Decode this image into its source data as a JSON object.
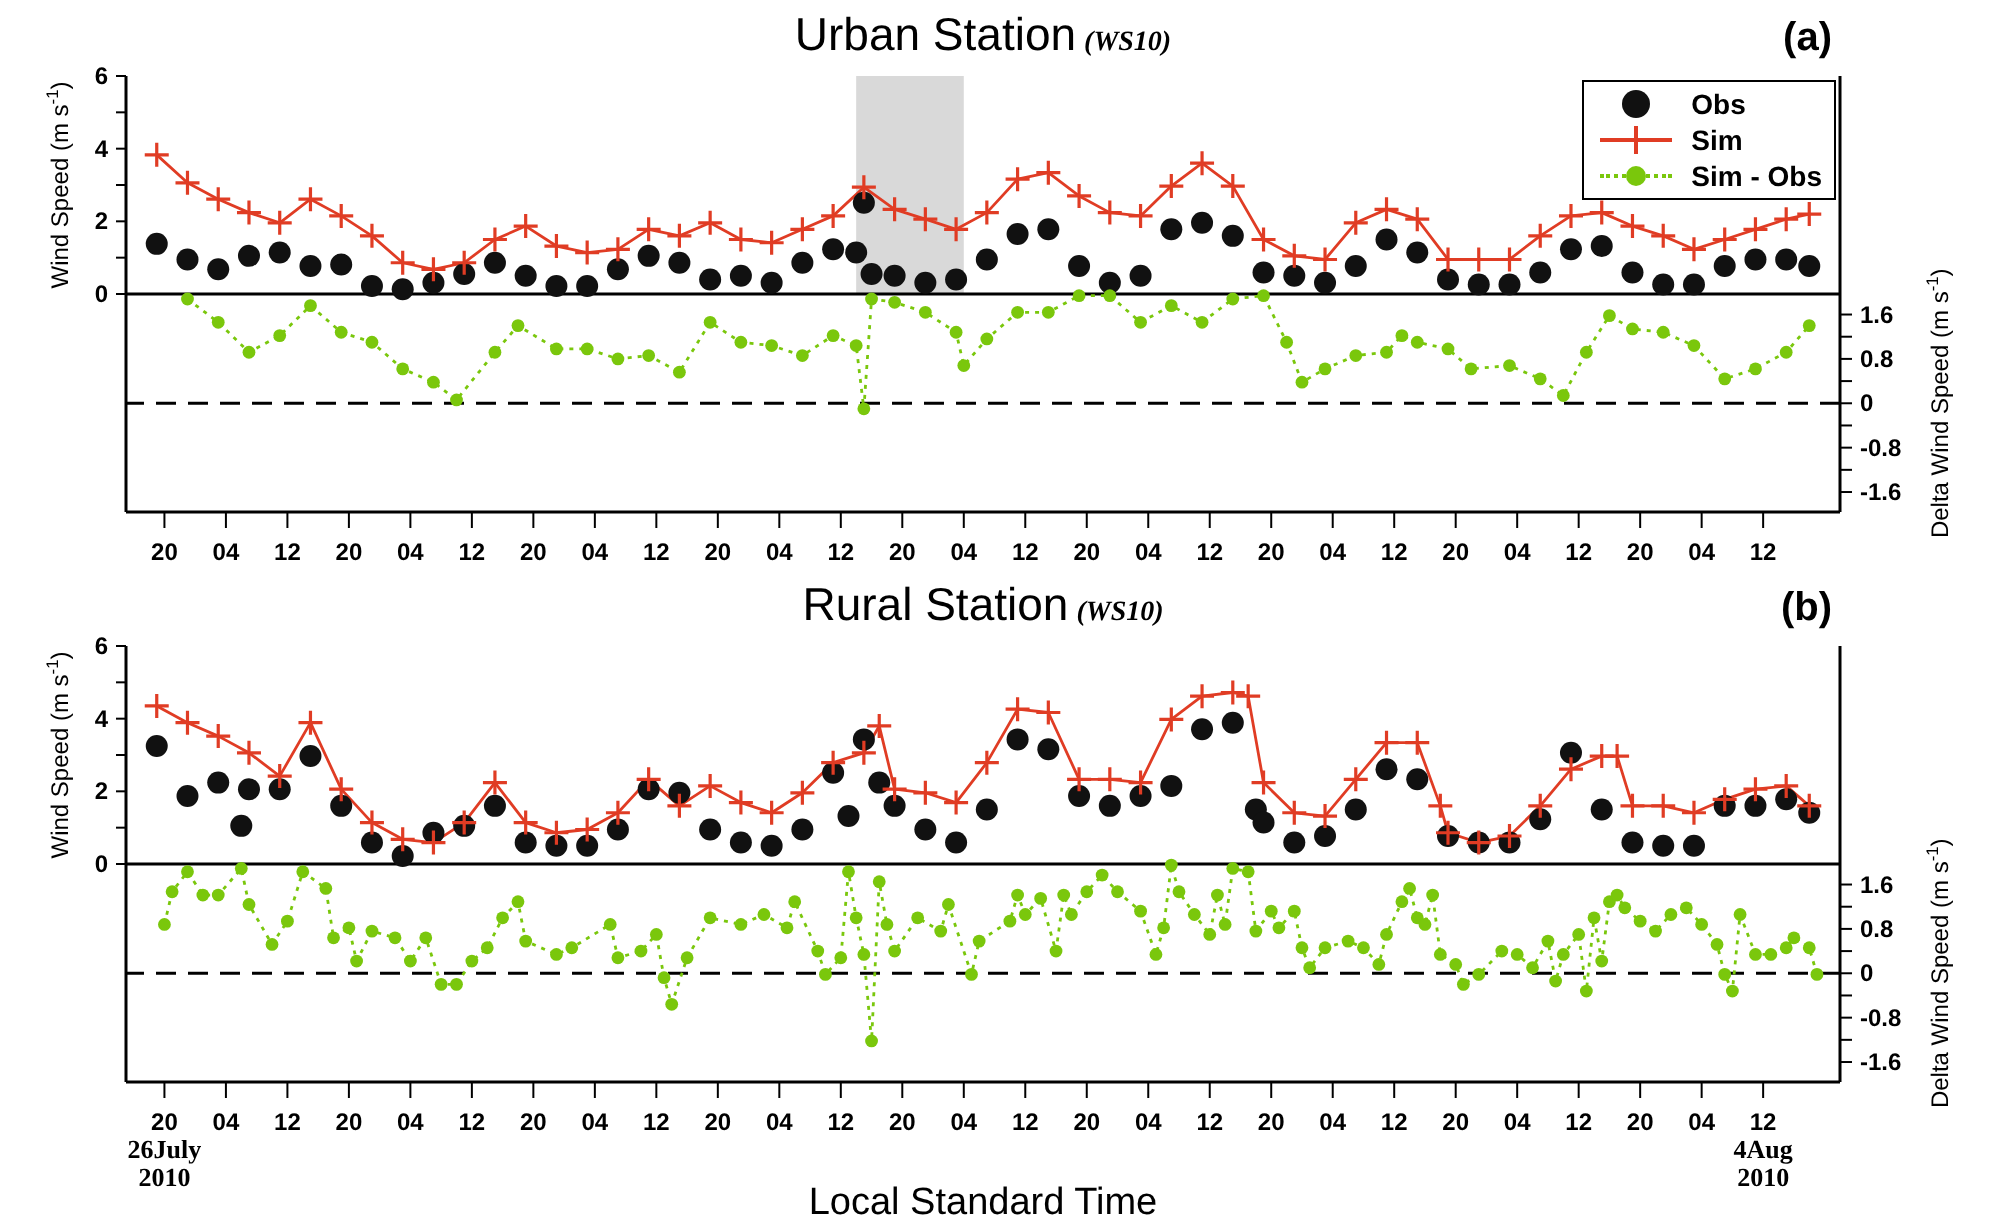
{
  "chart_data": [
    {
      "type": "line",
      "title": "Urban Station",
      "subtitle": "(WS10)",
      "annotations": [
        "(a)"
      ],
      "ylabel": "Wind Speed (m s$^{-1}$)",
      "y2label": "Delta Wind Speed (m s$^{-1}$)",
      "xlim": [
        "2010-07-26T15:00",
        "2010-08-04T22:00"
      ],
      "xticks": [
        {
          "value": "2010-07-26T20:00",
          "label": "20"
        },
        {
          "value": "2010-07-27T04:00",
          "label": "04"
        },
        {
          "value": "2010-07-27T12:00",
          "label": "12"
        },
        {
          "value": "2010-07-27T20:00",
          "label": "20"
        },
        {
          "value": "2010-07-28T04:00",
          "label": "04"
        },
        {
          "value": "2010-07-28T12:00",
          "label": "12"
        },
        {
          "value": "2010-07-28T20:00",
          "label": "20"
        },
        {
          "value": "2010-07-29T04:00",
          "label": "04"
        },
        {
          "value": "2010-07-29T12:00",
          "label": "12"
        },
        {
          "value": "2010-07-29T20:00",
          "label": "20"
        },
        {
          "value": "2010-07-30T04:00",
          "label": "04"
        },
        {
          "value": "2010-07-30T12:00",
          "label": "12"
        },
        {
          "value": "2010-07-30T20:00",
          "label": "20"
        },
        {
          "value": "2010-07-31T04:00",
          "label": "04"
        },
        {
          "value": "2010-07-31T12:00",
          "label": "12"
        },
        {
          "value": "2010-07-31T20:00",
          "label": "20"
        },
        {
          "value": "2010-08-01T04:00",
          "label": "04"
        },
        {
          "value": "2010-08-01T12:00",
          "label": "12"
        },
        {
          "value": "2010-08-01T20:00",
          "label": "20"
        },
        {
          "value": "2010-08-02T04:00",
          "label": "04"
        },
        {
          "value": "2010-08-02T12:00",
          "label": "12"
        },
        {
          "value": "2010-08-02T20:00",
          "label": "20"
        },
        {
          "value": "2010-08-03T04:00",
          "label": "04"
        },
        {
          "value": "2010-08-03T12:00",
          "label": "12"
        },
        {
          "value": "2010-08-03T20:00",
          "label": "20"
        },
        {
          "value": "2010-08-04T04:00",
          "label": "04"
        },
        {
          "value": "2010-08-04T12:00",
          "label": "12"
        }
      ],
      "ylim": [
        -6,
        6
      ],
      "yticks": [
        0,
        {
          "value": 1,
          "label": null
        },
        2,
        {
          "value": 3,
          "label": null
        },
        4,
        {
          "value": 5,
          "label": null
        },
        6
      ],
      "y2lim": [
        -1.96,
        5.9
      ],
      "y2ticks": [
        -1.6,
        {
          "value": -1.2,
          "label": null
        },
        -0.8,
        {
          "value": -0.4,
          "label": null
        },
        0,
        {
          "value": 0.4,
          "label": null
        },
        0.8,
        {
          "value": 1.2,
          "label": null
        },
        1.6
      ],
      "legend": "top right",
      "ref_lines": [
        {
          "axis": "y",
          "value": 0,
          "color": "#000000",
          "line_style": "solid"
        },
        {
          "axis": "y2",
          "value": 0,
          "color": "#000000",
          "line_style": "dashed"
        }
      ],
      "bands": [
        {
          "axis": "x",
          "from": "2010-07-30T14:00",
          "to": "2010-07-31T04:00",
          "color": "#d9d9d9"
        }
      ],
      "series": [
        {
          "name": "Obs",
          "type": "scatter",
          "marker": "circle",
          "color": "#111111",
          "x": [
            "2010-07-26T19:00",
            "2010-07-26T23:00",
            "2010-07-27T03:00",
            "2010-07-27T07:00",
            "2010-07-27T11:00",
            "2010-07-27T15:00",
            "2010-07-27T19:00",
            "2010-07-27T23:00",
            "2010-07-28T03:00",
            "2010-07-28T07:00",
            "2010-07-28T11:00",
            "2010-07-28T15:00",
            "2010-07-28T19:00",
            "2010-07-28T23:00",
            "2010-07-29T03:00",
            "2010-07-29T07:00",
            "2010-07-29T11:00",
            "2010-07-29T15:00",
            "2010-07-29T19:00",
            "2010-07-29T23:00",
            "2010-07-30T03:00",
            "2010-07-30T07:00",
            "2010-07-30T11:00",
            "2010-07-30T14:00",
            "2010-07-30T15:00",
            "2010-07-30T16:00",
            "2010-07-30T19:00",
            "2010-07-30T23:00",
            "2010-07-31T03:00",
            "2010-07-31T07:00",
            "2010-07-31T11:00",
            "2010-07-31T15:00",
            "2010-07-31T19:00",
            "2010-07-31T23:00",
            "2010-08-01T03:00",
            "2010-08-01T07:00",
            "2010-08-01T11:00",
            "2010-08-01T15:00",
            "2010-08-01T19:00",
            "2010-08-01T23:00",
            "2010-08-02T03:00",
            "2010-08-02T07:00",
            "2010-08-02T11:00",
            "2010-08-02T15:00",
            "2010-08-02T19:00",
            "2010-08-02T23:00",
            "2010-08-03T03:00",
            "2010-08-03T07:00",
            "2010-08-03T11:00",
            "2010-08-03T15:00",
            "2010-08-03T19:00",
            "2010-08-03T23:00",
            "2010-08-04T03:00",
            "2010-08-04T07:00",
            "2010-08-04T11:00",
            "2010-08-04T15:00",
            "2010-08-04T18:00"
          ],
          "values": [
            1.38,
            0.95,
            0.68,
            1.05,
            1.14,
            0.77,
            0.81,
            0.22,
            0.13,
            0.31,
            0.55,
            0.86,
            0.5,
            0.22,
            0.22,
            0.68,
            1.05,
            0.86,
            0.4,
            0.5,
            0.31,
            0.86,
            1.23,
            1.14,
            2.51,
            0.55,
            0.5,
            0.31,
            0.4,
            0.95,
            1.65,
            1.78,
            0.77,
            0.31,
            0.5,
            1.78,
            1.96,
            1.6,
            0.59,
            0.5,
            0.31,
            0.77,
            1.5,
            1.14,
            0.4,
            0.26,
            0.26,
            0.59,
            1.23,
            1.32,
            0.59,
            0.26,
            0.26,
            0.77,
            0.95,
            0.95,
            0.77
          ]
        },
        {
          "name": "Sim",
          "marker": "cross",
          "line_style": "solid",
          "color": "#e03c24",
          "x": [
            "2010-07-26T19:00",
            "2010-07-26T23:00",
            "2010-07-27T03:00",
            "2010-07-27T07:00",
            "2010-07-27T11:00",
            "2010-07-27T15:00",
            "2010-07-27T19:00",
            "2010-07-27T23:00",
            "2010-07-28T03:00",
            "2010-07-28T07:00",
            "2010-07-28T11:00",
            "2010-07-28T15:00",
            "2010-07-28T19:00",
            "2010-07-28T23:00",
            "2010-07-29T03:00",
            "2010-07-29T07:00",
            "2010-07-29T11:00",
            "2010-07-29T15:00",
            "2010-07-29T19:00",
            "2010-07-29T23:00",
            "2010-07-30T03:00",
            "2010-07-30T07:00",
            "2010-07-30T11:00",
            "2010-07-30T15:00",
            "2010-07-30T19:00",
            "2010-07-30T23:00",
            "2010-07-31T03:00",
            "2010-07-31T07:00",
            "2010-07-31T11:00",
            "2010-07-31T15:00",
            "2010-07-31T19:00",
            "2010-07-31T23:00",
            "2010-08-01T03:00",
            "2010-08-01T07:00",
            "2010-08-01T11:00",
            "2010-08-01T15:00",
            "2010-08-01T19:00",
            "2010-08-01T23:00",
            "2010-08-02T03:00",
            "2010-08-02T07:00",
            "2010-08-02T11:00",
            "2010-08-02T15:00",
            "2010-08-02T19:00",
            "2010-08-02T23:00",
            "2010-08-03T03:00",
            "2010-08-03T07:00",
            "2010-08-03T11:00",
            "2010-08-03T15:00",
            "2010-08-03T19:00",
            "2010-08-03T23:00",
            "2010-08-04T03:00",
            "2010-08-04T07:00",
            "2010-08-04T11:00",
            "2010-08-04T15:00",
            "2010-08-04T18:00"
          ],
          "values": [
            3.83,
            3.06,
            2.61,
            2.24,
            1.96,
            2.61,
            2.15,
            1.6,
            0.86,
            0.68,
            0.86,
            1.5,
            1.87,
            1.32,
            1.14,
            1.23,
            1.78,
            1.6,
            1.96,
            1.5,
            1.41,
            1.78,
            2.15,
            2.94,
            2.33,
            2.06,
            1.78,
            2.24,
            3.16,
            3.34,
            2.7,
            2.24,
            2.15,
            2.97,
            3.6,
            2.97,
            1.5,
            1.05,
            0.95,
            1.96,
            2.33,
            2.06,
            0.95,
            0.95,
            0.95,
            1.6,
            2.15,
            2.24,
            1.87,
            1.6,
            1.23,
            1.5,
            1.78,
            2.06,
            2.2
          ]
        },
        {
          "name": "Sim - Obs",
          "axis": "y2",
          "marker": "circle",
          "line_style": "dotted",
          "color": "#7ac70c",
          "x": [
            "2010-07-26T23:00",
            "2010-07-27T03:00",
            "2010-07-27T07:00",
            "2010-07-27T11:00",
            "2010-07-27T15:00",
            "2010-07-27T19:00",
            "2010-07-27T23:00",
            "2010-07-28T03:00",
            "2010-07-28T07:00",
            "2010-07-28T10:00",
            "2010-07-28T15:00",
            "2010-07-28T18:00",
            "2010-07-28T23:00",
            "2010-07-29T03:00",
            "2010-07-29T07:00",
            "2010-07-29T11:00",
            "2010-07-29T15:00",
            "2010-07-29T19:00",
            "2010-07-29T23:00",
            "2010-07-30T03:00",
            "2010-07-30T07:00",
            "2010-07-30T11:00",
            "2010-07-30T14:00",
            "2010-07-30T15:00",
            "2010-07-30T16:00",
            "2010-07-30T19:00",
            "2010-07-30T23:00",
            "2010-07-31T03:00",
            "2010-07-31T04:00",
            "2010-07-31T07:00",
            "2010-07-31T11:00",
            "2010-07-31T15:00",
            "2010-07-31T19:00",
            "2010-07-31T23:00",
            "2010-08-01T03:00",
            "2010-08-01T07:00",
            "2010-08-01T11:00",
            "2010-08-01T15:00",
            "2010-08-01T19:00",
            "2010-08-01T22:00",
            "2010-08-02T00:00",
            "2010-08-02T03:00",
            "2010-08-02T07:00",
            "2010-08-02T11:00",
            "2010-08-02T13:00",
            "2010-08-02T15:00",
            "2010-08-02T19:00",
            "2010-08-02T22:00",
            "2010-08-03T03:00",
            "2010-08-03T07:00",
            "2010-08-03T10:00",
            "2010-08-03T13:00",
            "2010-08-03T16:00",
            "2010-08-03T19:00",
            "2010-08-03T23:00",
            "2010-08-04T03:00",
            "2010-08-04T07:00",
            "2010-08-04T11:00",
            "2010-08-04T15:00",
            "2010-08-04T18:00"
          ],
          "values": [
            1.88,
            1.46,
            0.92,
            1.22,
            1.76,
            1.28,
            1.1,
            0.62,
            0.38,
            0.06,
            0.92,
            1.4,
            0.98,
            0.98,
            0.8,
            0.86,
            0.56,
            1.46,
            1.1,
            1.04,
            0.86,
            1.22,
            1.04,
            -0.1,
            1.88,
            1.82,
            1.64,
            1.28,
            0.68,
            1.16,
            1.64,
            1.64,
            1.94,
            1.94,
            1.46,
            1.76,
            1.46,
            1.88,
            1.94,
            1.1,
            0.38,
            0.62,
            0.86,
            0.92,
            1.22,
            1.1,
            0.98,
            0.62,
            0.68,
            0.44,
            0.14,
            0.92,
            1.58,
            1.34,
            1.28,
            1.04,
            0.44,
            0.62,
            0.92,
            1.4
          ]
        }
      ]
    },
    {
      "type": "line",
      "title": "Rural Station",
      "subtitle": "(WS10)",
      "annotations": [
        "(b)"
      ],
      "xlabel": "Local Standard Time",
      "ylabel": "Wind Speed (m s$^{-1}$)",
      "y2label": "Delta Wind Speed (m s$^{-1}$)",
      "xlim": [
        "2010-07-26T15:00",
        "2010-08-04T22:00"
      ],
      "xticks": [
        {
          "value": "2010-07-26T20:00",
          "label": "20\n26July\n2010"
        },
        {
          "value": "2010-07-27T04:00",
          "label": "04"
        },
        {
          "value": "2010-07-27T12:00",
          "label": "12"
        },
        {
          "value": "2010-07-27T20:00",
          "label": "20"
        },
        {
          "value": "2010-07-28T04:00",
          "label": "04"
        },
        {
          "value": "2010-07-28T12:00",
          "label": "12"
        },
        {
          "value": "2010-07-28T20:00",
          "label": "20"
        },
        {
          "value": "2010-07-29T04:00",
          "label": "04"
        },
        {
          "value": "2010-07-29T12:00",
          "label": "12"
        },
        {
          "value": "2010-07-29T20:00",
          "label": "20"
        },
        {
          "value": "2010-07-30T04:00",
          "label": "04"
        },
        {
          "value": "2010-07-30T12:00",
          "label": "12"
        },
        {
          "value": "2010-07-30T20:00",
          "label": "20"
        },
        {
          "value": "2010-07-31T04:00",
          "label": "04"
        },
        {
          "value": "2010-07-31T12:00",
          "label": "12"
        },
        {
          "value": "2010-07-31T20:00",
          "label": "20"
        },
        {
          "value": "2010-08-01T04:00",
          "label": "04"
        },
        {
          "value": "2010-08-01T12:00",
          "label": "12"
        },
        {
          "value": "2010-08-01T20:00",
          "label": "20"
        },
        {
          "value": "2010-08-02T04:00",
          "label": "04"
        },
        {
          "value": "2010-08-02T12:00",
          "label": "12"
        },
        {
          "value": "2010-08-02T20:00",
          "label": "20"
        },
        {
          "value": "2010-08-03T04:00",
          "label": "04"
        },
        {
          "value": "2010-08-03T12:00",
          "label": "12"
        },
        {
          "value": "2010-08-03T20:00",
          "label": "20"
        },
        {
          "value": "2010-08-04T04:00",
          "label": "04"
        },
        {
          "value": "2010-08-04T12:00",
          "label": "12\n4Aug\n2010"
        }
      ],
      "ylim": [
        -6,
        6
      ],
      "yticks": [
        0,
        {
          "value": 1,
          "label": null
        },
        2,
        {
          "value": 3,
          "label": null
        },
        4,
        {
          "value": 5,
          "label": null
        },
        6
      ],
      "y2lim": [
        -1.96,
        5.9
      ],
      "y2ticks": [
        -1.6,
        {
          "value": -1.2,
          "label": null
        },
        -0.8,
        {
          "value": -0.4,
          "label": null
        },
        0,
        {
          "value": 0.4,
          "label": null
        },
        0.8,
        {
          "value": 1.2,
          "label": null
        },
        1.6
      ],
      "ref_lines": [
        {
          "axis": "y",
          "value": 0,
          "color": "#000000",
          "line_style": "solid"
        },
        {
          "axis": "y2",
          "value": 0,
          "color": "#000000",
          "line_style": "dashed"
        }
      ],
      "series": [
        {
          "type": "scatter",
          "marker": "circle",
          "color": "#111111",
          "x": [
            "2010-07-26T19:00",
            "2010-07-26T23:00",
            "2010-07-27T03:00",
            "2010-07-27T06:00",
            "2010-07-27T07:00",
            "2010-07-27T11:00",
            "2010-07-27T15:00",
            "2010-07-27T19:00",
            "2010-07-27T23:00",
            "2010-07-28T03:00",
            "2010-07-28T07:00",
            "2010-07-28T11:00",
            "2010-07-28T15:00",
            "2010-07-28T19:00",
            "2010-07-28T23:00",
            "2010-07-29T03:00",
            "2010-07-29T07:00",
            "2010-07-29T11:00",
            "2010-07-29T15:00",
            "2010-07-29T19:00",
            "2010-07-29T23:00",
            "2010-07-30T03:00",
            "2010-07-30T07:00",
            "2010-07-30T11:00",
            "2010-07-30T13:00",
            "2010-07-30T15:00",
            "2010-07-30T17:00",
            "2010-07-30T19:00",
            "2010-07-30T23:00",
            "2010-07-31T03:00",
            "2010-07-31T07:00",
            "2010-07-31T11:00",
            "2010-07-31T15:00",
            "2010-07-31T19:00",
            "2010-07-31T23:00",
            "2010-08-01T03:00",
            "2010-08-01T07:00",
            "2010-08-01T11:00",
            "2010-08-01T15:00",
            "2010-08-01T18:00",
            "2010-08-01T19:00",
            "2010-08-01T23:00",
            "2010-08-02T03:00",
            "2010-08-02T07:00",
            "2010-08-02T11:00",
            "2010-08-02T15:00",
            "2010-08-02T19:00",
            "2010-08-02T23:00",
            "2010-08-03T03:00",
            "2010-08-03T07:00",
            "2010-08-03T11:00",
            "2010-08-03T15:00",
            "2010-08-03T19:00",
            "2010-08-03T23:00",
            "2010-08-04T03:00",
            "2010-08-04T07:00",
            "2010-08-04T11:00",
            "2010-08-04T15:00",
            "2010-08-04T18:00"
          ],
          "values": [
            3.25,
            1.87,
            2.24,
            1.05,
            2.06,
            2.06,
            2.97,
            1.6,
            0.59,
            0.22,
            0.86,
            1.05,
            1.6,
            0.59,
            0.5,
            0.5,
            0.95,
            2.06,
            1.96,
            0.95,
            0.59,
            0.5,
            0.95,
            2.51,
            1.32,
            3.43,
            2.24,
            1.6,
            0.95,
            0.59,
            1.5,
            3.43,
            3.16,
            1.87,
            1.6,
            1.87,
            2.15,
            3.71,
            3.89,
            1.5,
            1.14,
            0.59,
            0.77,
            1.5,
            2.61,
            2.33,
            0.77,
            0.59,
            0.59,
            1.23,
            3.06,
            1.5,
            0.59,
            0.5,
            0.5,
            1.6,
            1.6,
            1.78,
            1.41
          ]
        },
        {
          "marker": "cross",
          "line_style": "solid",
          "color": "#e03c24",
          "x": [
            "2010-07-26T19:00",
            "2010-07-26T23:00",
            "2010-07-27T03:00",
            "2010-07-27T07:00",
            "2010-07-27T11:00",
            "2010-07-27T15:00",
            "2010-07-27T19:00",
            "2010-07-27T23:00",
            "2010-07-28T03:00",
            "2010-07-28T07:00",
            "2010-07-28T11:00",
            "2010-07-28T15:00",
            "2010-07-28T19:00",
            "2010-07-28T23:00",
            "2010-07-29T03:00",
            "2010-07-29T07:00",
            "2010-07-29T11:00",
            "2010-07-29T15:00",
            "2010-07-29T19:00",
            "2010-07-29T23:00",
            "2010-07-30T03:00",
            "2010-07-30T07:00",
            "2010-07-30T11:00",
            "2010-07-30T15:00",
            "2010-07-30T17:00",
            "2010-07-30T19:00",
            "2010-07-30T23:00",
            "2010-07-31T03:00",
            "2010-07-31T07:00",
            "2010-07-31T11:00",
            "2010-07-31T15:00",
            "2010-07-31T19:00",
            "2010-07-31T23:00",
            "2010-08-01T03:00",
            "2010-08-01T07:00",
            "2010-08-01T11:00",
            "2010-08-01T15:00",
            "2010-08-01T17:00",
            "2010-08-01T19:00",
            "2010-08-01T23:00",
            "2010-08-02T03:00",
            "2010-08-02T07:00",
            "2010-08-02T11:00",
            "2010-08-02T15:00",
            "2010-08-02T18:00",
            "2010-08-02T19:00",
            "2010-08-02T23:00",
            "2010-08-03T03:00",
            "2010-08-03T07:00",
            "2010-08-03T11:00",
            "2010-08-03T15:00",
            "2010-08-03T17:00",
            "2010-08-03T19:00",
            "2010-08-03T23:00",
            "2010-08-04T03:00",
            "2010-08-04T07:00",
            "2010-08-04T11:00",
            "2010-08-04T15:00",
            "2010-08-04T18:00"
          ],
          "values": [
            4.35,
            3.89,
            3.52,
            3.06,
            2.42,
            3.89,
            2.06,
            1.14,
            0.68,
            0.59,
            1.14,
            2.24,
            1.14,
            0.86,
            0.95,
            1.41,
            2.33,
            1.6,
            2.15,
            1.69,
            1.41,
            1.96,
            2.79,
            3.06,
            3.8,
            2.06,
            1.96,
            1.69,
            2.79,
            4.26,
            4.17,
            2.33,
            2.33,
            2.24,
            3.98,
            4.62,
            4.72,
            4.62,
            2.24,
            1.41,
            1.32,
            2.33,
            3.34,
            3.34,
            1.6,
            0.86,
            0.59,
            0.77,
            1.6,
            2.61,
            2.97,
            2.97,
            1.6,
            1.6,
            1.41,
            1.78,
            2.06,
            2.15,
            1.6
          ]
        },
        {
          "axis": "y2",
          "marker": "circle",
          "line_style": "dotted",
          "color": "#7ac70c",
          "x": [
            "2010-07-26T20:00",
            "2010-07-26T21:00",
            "2010-07-26T23:00",
            "2010-07-27T01:00",
            "2010-07-27T03:00",
            "2010-07-27T06:00",
            "2010-07-27T07:00",
            "2010-07-27T10:00",
            "2010-07-27T12:00",
            "2010-07-27T14:00",
            "2010-07-27T17:00",
            "2010-07-27T18:00",
            "2010-07-27T20:00",
            "2010-07-27T21:00",
            "2010-07-27T23:00",
            "2010-07-28T02:00",
            "2010-07-28T04:00",
            "2010-07-28T06:00",
            "2010-07-28T08:00",
            "2010-07-28T10:00",
            "2010-07-28T12:00",
            "2010-07-28T14:00",
            "2010-07-28T16:00",
            "2010-07-28T18:00",
            "2010-07-28T19:00",
            "2010-07-28T23:00",
            "2010-07-29T01:00",
            "2010-07-29T06:00",
            "2010-07-29T07:00",
            "2010-07-29T10:00",
            "2010-07-29T12:00",
            "2010-07-29T13:00",
            "2010-07-29T14:00",
            "2010-07-29T16:00",
            "2010-07-29T19:00",
            "2010-07-29T23:00",
            "2010-07-30T02:00",
            "2010-07-30T05:00",
            "2010-07-30T06:00",
            "2010-07-30T09:00",
            "2010-07-30T10:00",
            "2010-07-30T12:00",
            "2010-07-30T13:00",
            "2010-07-30T14:00",
            "2010-07-30T15:00",
            "2010-07-30T16:00",
            "2010-07-30T17:00",
            "2010-07-30T18:00",
            "2010-07-30T19:00",
            "2010-07-30T22:00",
            "2010-07-31T01:00",
            "2010-07-31T02:00",
            "2010-07-31T05:00",
            "2010-07-31T06:00",
            "2010-07-31T10:00",
            "2010-07-31T11:00",
            "2010-07-31T12:00",
            "2010-07-31T14:00",
            "2010-07-31T16:00",
            "2010-07-31T17:00",
            "2010-07-31T18:00",
            "2010-07-31T20:00",
            "2010-07-31T22:00",
            "2010-08-01T00:00",
            "2010-08-01T03:00",
            "2010-08-01T05:00",
            "2010-08-01T06:00",
            "2010-08-01T07:00",
            "2010-08-01T08:00",
            "2010-08-01T10:00",
            "2010-08-01T12:00",
            "2010-08-01T13:00",
            "2010-08-01T14:00",
            "2010-08-01T15:00",
            "2010-08-01T17:00",
            "2010-08-01T18:00",
            "2010-08-01T20:00",
            "2010-08-01T21:00",
            "2010-08-01T23:00",
            "2010-08-02T00:00",
            "2010-08-02T01:00",
            "2010-08-02T03:00",
            "2010-08-02T06:00",
            "2010-08-02T08:00",
            "2010-08-02T10:00",
            "2010-08-02T11:00",
            "2010-08-02T13:00",
            "2010-08-02T14:00",
            "2010-08-02T15:00",
            "2010-08-02T16:00",
            "2010-08-02T17:00",
            "2010-08-02T18:00",
            "2010-08-02T20:00",
            "2010-08-02T21:00",
            "2010-08-02T23:00",
            "2010-08-03T02:00",
            "2010-08-03T04:00",
            "2010-08-03T06:00",
            "2010-08-03T08:00",
            "2010-08-03T09:00",
            "2010-08-03T10:00",
            "2010-08-03T12:00",
            "2010-08-03T13:00",
            "2010-08-03T14:00",
            "2010-08-03T15:00",
            "2010-08-03T16:00",
            "2010-08-03T17:00",
            "2010-08-03T18:00",
            "2010-08-03T20:00",
            "2010-08-03T22:00",
            "2010-08-04T00:00",
            "2010-08-04T02:00",
            "2010-08-04T04:00",
            "2010-08-04T06:00",
            "2010-08-04T07:00",
            "2010-08-04T08:00",
            "2010-08-04T09:00",
            "2010-08-04T11:00",
            "2010-08-04T13:00",
            "2010-08-04T15:00",
            "2010-08-04T16:00",
            "2010-08-04T18:00",
            "2010-08-04T19:00"
          ],
          "values": [
            0.88,
            1.47,
            1.83,
            1.41,
            1.41,
            1.89,
            1.24,
            0.52,
            0.94,
            1.83,
            1.53,
            0.64,
            0.82,
            0.22,
            0.76,
            0.64,
            0.22,
            0.64,
            -0.2,
            -0.2,
            0.22,
            0.46,
            1.0,
            1.29,
            0.58,
            0.34,
            0.46,
            0.88,
            0.28,
            0.4,
            0.7,
            -0.08,
            -0.56,
            0.28,
            1.0,
            0.88,
            1.06,
            0.82,
            1.29,
            0.4,
            -0.02,
            0.28,
            1.83,
            1.0,
            0.34,
            -1.22,
            1.65,
            0.88,
            0.4,
            1.0,
            0.76,
            1.24,
            -0.02,
            0.58,
            0.94,
            1.41,
            1.06,
            1.35,
            0.4,
            1.41,
            1.06,
            1.47,
            1.77,
            1.47,
            1.12,
            0.34,
            0.82,
            1.95,
            1.47,
            1.06,
            0.7,
            1.41,
            0.88,
            1.89,
            1.83,
            0.76,
            1.12,
            0.82,
            1.12,
            0.46,
            0.1,
            0.46,
            0.58,
            0.46,
            0.16,
            0.7,
            1.29,
            1.53,
            1.0,
            0.88,
            1.41,
            0.34,
            0.16,
            -0.2,
            -0.02,
            0.4,
            0.34,
            0.1,
            0.58,
            -0.14,
            0.34,
            0.7,
            -0.32,
            1.0,
            0.22,
            1.29,
            1.41,
            1.18,
            0.94,
            0.76,
            1.06,
            1.18,
            0.88,
            0.52,
            -0.02,
            -0.32,
            1.06,
            0.34,
            0.34,
            0.46,
            0.64,
            0.46,
            -0.02
          ]
        }
      ]
    }
  ]
}
